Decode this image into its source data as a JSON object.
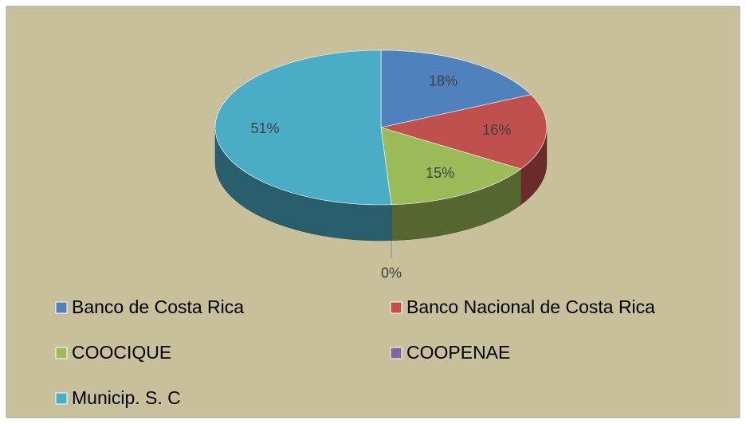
{
  "chart_data": {
    "type": "pie",
    "categories": [
      "Banco de Costa Rica",
      "Banco Nacional de Costa Rica",
      "COOCIQUE",
      "COOPENAE",
      "Municip. S. C"
    ],
    "values": [
      18,
      16,
      15,
      0,
      51
    ],
    "value_labels": [
      "18%",
      "16%",
      "15%",
      "0%",
      "51%"
    ],
    "colors": [
      "#4f81bd",
      "#c0504d",
      "#9bbb59",
      "#8064a2",
      "#4bacc6"
    ],
    "legend": "bottom"
  }
}
